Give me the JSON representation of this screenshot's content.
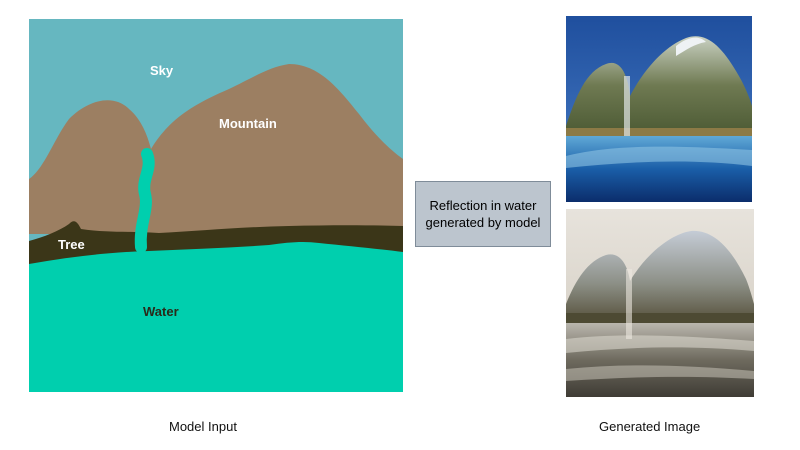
{
  "input_panel": {
    "labels": {
      "sky": "Sky",
      "mountain": "Mountain",
      "tree": "Tree",
      "water": "Water"
    },
    "colors": {
      "sky": "#66b7c0",
      "mountain": "#9c7f62",
      "tree": "#3b3618",
      "water": "#00cfae",
      "label_light": "#ffffff",
      "label_dark": "#2a2a1a"
    }
  },
  "note": {
    "line1": "Reflection in water",
    "line2": "generated by model"
  },
  "captions": {
    "input": "Model Input",
    "output": "Generated Image"
  }
}
